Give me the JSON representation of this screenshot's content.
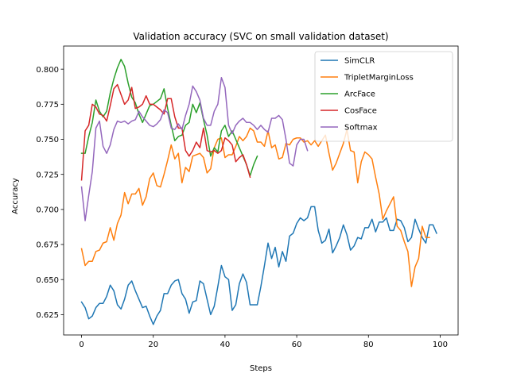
{
  "chart_data": {
    "type": "line",
    "title": "Validation accuracy (SVC on small validation dataset)",
    "xlabel": "Steps",
    "ylabel": "Accuracy",
    "xlim": [
      -5,
      105
    ],
    "ylim": [
      0.6105,
      0.8165
    ],
    "xticks": [
      0,
      20,
      40,
      60,
      80,
      100
    ],
    "xtick_labels": [
      "0",
      "20",
      "40",
      "60",
      "80",
      "100"
    ],
    "yticks": [
      0.625,
      0.65,
      0.675,
      0.7,
      0.725,
      0.75,
      0.775,
      0.8
    ],
    "ytick_labels": [
      "0.625",
      "0.650",
      "0.675",
      "0.700",
      "0.725",
      "0.750",
      "0.775",
      "0.800"
    ],
    "grid": false,
    "legend_position": "top-right",
    "series": [
      {
        "name": "SimCLR",
        "color": "#1f77b4",
        "x_start": 0,
        "values": [
          0.634,
          0.63,
          0.622,
          0.624,
          0.63,
          0.633,
          0.633,
          0.638,
          0.646,
          0.642,
          0.632,
          0.629,
          0.636,
          0.646,
          0.649,
          0.642,
          0.636,
          0.63,
          0.631,
          0.624,
          0.618,
          0.624,
          0.628,
          0.64,
          0.64,
          0.646,
          0.649,
          0.65,
          0.64,
          0.636,
          0.626,
          0.634,
          0.635,
          0.649,
          0.647,
          0.636,
          0.625,
          0.631,
          0.645,
          0.66,
          0.652,
          0.65,
          0.628,
          0.632,
          0.647,
          0.654,
          0.648,
          0.632,
          0.632,
          0.632,
          0.645,
          0.66,
          0.676,
          0.665,
          0.673,
          0.659,
          0.67,
          0.663,
          0.681,
          0.683,
          0.69,
          0.694,
          0.692,
          0.694,
          0.702,
          0.702,
          0.685,
          0.676,
          0.678,
          0.686,
          0.669,
          0.674,
          0.68,
          0.689,
          0.682,
          0.671,
          0.674,
          0.68,
          0.679,
          0.687,
          0.687,
          0.693,
          0.684,
          0.691,
          0.691,
          0.694,
          0.685,
          0.685,
          0.693,
          0.692,
          0.687,
          0.677,
          0.68,
          0.693,
          0.686,
          0.68,
          0.676,
          0.689,
          0.689,
          0.683
        ]
      },
      {
        "name": "TripletMarginLoss",
        "color": "#ff7f0e",
        "x_start": 0,
        "values": [
          0.672,
          0.66,
          0.663,
          0.663,
          0.67,
          0.671,
          0.676,
          0.677,
          0.687,
          0.678,
          0.69,
          0.696,
          0.712,
          0.704,
          0.711,
          0.711,
          0.715,
          0.703,
          0.709,
          0.722,
          0.726,
          0.717,
          0.716,
          0.725,
          0.735,
          0.746,
          0.736,
          0.74,
          0.719,
          0.73,
          0.727,
          0.738,
          0.739,
          0.74,
          0.737,
          0.726,
          0.729,
          0.744,
          0.75,
          0.751,
          0.737,
          0.739,
          0.739,
          0.745,
          0.752,
          0.749,
          0.752,
          0.758,
          0.756,
          0.748,
          0.748,
          0.745,
          0.756,
          0.744,
          0.746,
          0.736,
          0.737,
          0.747,
          0.746,
          0.75,
          0.751,
          0.751,
          0.748,
          0.749,
          0.746,
          0.749,
          0.745,
          0.749,
          0.753,
          0.74,
          0.728,
          0.733,
          0.74,
          0.747,
          0.757,
          0.742,
          0.741,
          0.719,
          0.734,
          0.741,
          0.739,
          0.736,
          0.723,
          0.711,
          0.693,
          0.699,
          0.704,
          0.709,
          0.688,
          0.685,
          0.677,
          0.67,
          0.645,
          0.659,
          0.665,
          0.688,
          0.68,
          0.68
        ]
      },
      {
        "name": "ArcFace",
        "color": "#2ca02c",
        "x_start": 0,
        "values": [
          0.74,
          0.74,
          0.752,
          0.762,
          0.778,
          0.77,
          0.766,
          0.77,
          0.783,
          0.793,
          0.801,
          0.807,
          0.802,
          0.79,
          0.78,
          0.776,
          0.768,
          0.762,
          0.768,
          0.774,
          0.775,
          0.777,
          0.779,
          0.786,
          0.772,
          0.76,
          0.749,
          0.752,
          0.753,
          0.76,
          0.762,
          0.775,
          0.769,
          0.776,
          0.764,
          0.753,
          0.738,
          0.744,
          0.741,
          0.756,
          0.76,
          0.752,
          0.756,
          0.75,
          0.744,
          0.738,
          0.732,
          0.724,
          0.732,
          0.738
        ]
      },
      {
        "name": "CosFace",
        "color": "#d62728",
        "x_start": 0,
        "values": [
          0.721,
          0.756,
          0.76,
          0.775,
          0.773,
          0.768,
          0.767,
          0.763,
          0.774,
          0.786,
          0.789,
          0.782,
          0.775,
          0.778,
          0.787,
          0.772,
          0.773,
          0.775,
          0.781,
          0.775,
          0.775,
          0.773,
          0.771,
          0.768,
          0.779,
          0.779,
          0.766,
          0.758,
          0.758,
          0.742,
          0.738,
          0.742,
          0.748,
          0.744,
          0.758,
          0.742,
          0.741,
          0.742,
          0.74,
          0.742,
          0.751,
          0.749,
          0.746,
          0.734,
          0.737,
          0.739,
          0.732,
          0.723
        ]
      },
      {
        "name": "Softmax",
        "color": "#9467bd",
        "x_start": 0,
        "values": [
          0.716,
          0.692,
          0.71,
          0.727,
          0.758,
          0.763,
          0.745,
          0.74,
          0.746,
          0.757,
          0.763,
          0.762,
          0.763,
          0.761,
          0.763,
          0.764,
          0.77,
          0.766,
          0.763,
          0.76,
          0.759,
          0.761,
          0.764,
          0.771,
          0.769,
          0.758,
          0.757,
          0.761,
          0.757,
          0.767,
          0.775,
          0.788,
          0.784,
          0.778,
          0.765,
          0.76,
          0.76,
          0.77,
          0.775,
          0.794,
          0.787,
          0.76,
          0.754,
          0.76,
          0.763,
          0.765,
          0.762,
          0.762,
          0.76,
          0.757,
          0.76,
          0.757,
          0.755,
          0.765,
          0.765,
          0.767,
          0.764,
          0.75,
          0.733,
          0.731,
          0.746,
          0.75,
          0.75,
          0.742
        ]
      }
    ]
  }
}
